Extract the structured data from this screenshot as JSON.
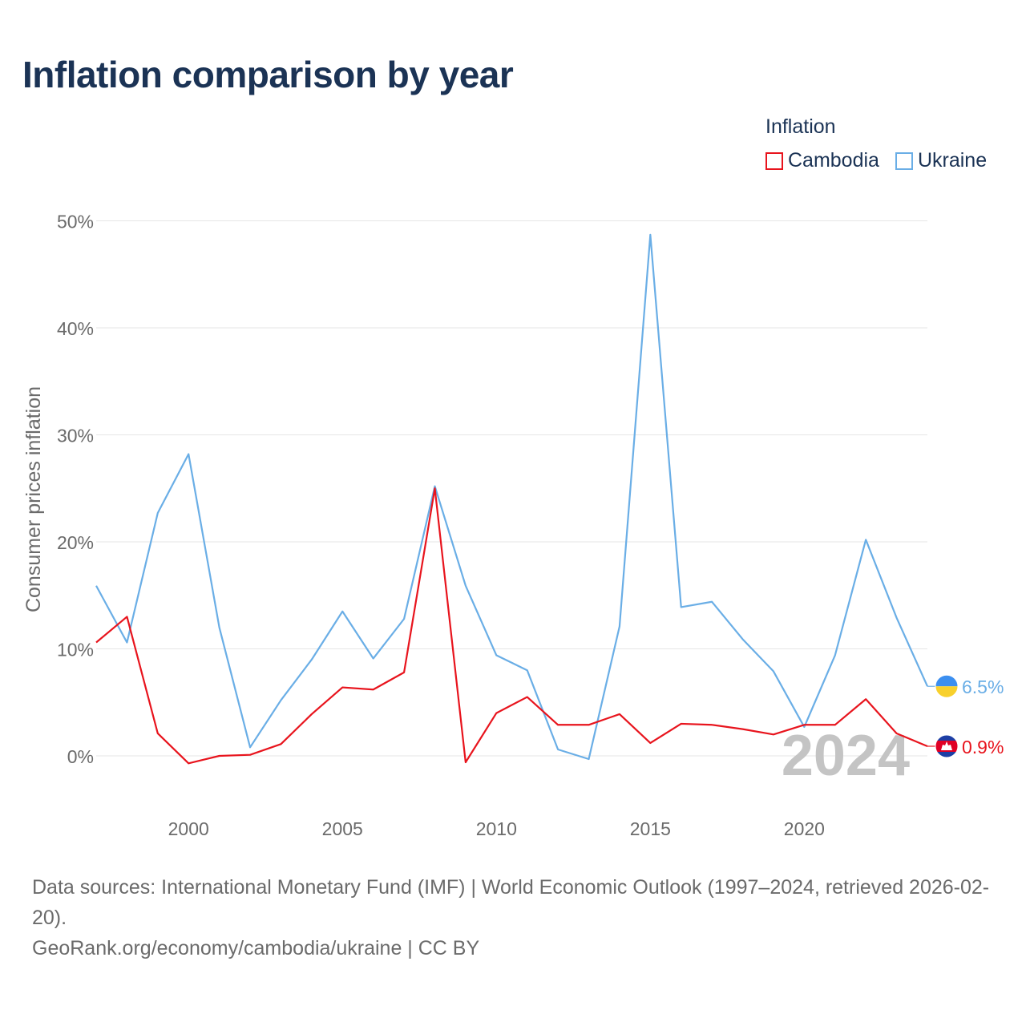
{
  "title": "Inflation comparison by year",
  "legend": {
    "title": "Inflation",
    "items": [
      {
        "label": "Cambodia",
        "color": "#e8141d"
      },
      {
        "label": "Ukraine",
        "color": "#6aaee6"
      }
    ]
  },
  "footer": {
    "source": "Data sources: International Monetary Fund (IMF) | World Economic Outlook (1997–2024, retrieved 2026-02-20).",
    "credit": "GeoRank.org/economy/cambodia/ukraine | CC BY"
  },
  "chart_data": {
    "type": "line",
    "title": "Inflation comparison by year",
    "xlabel": "",
    "ylabel": "Consumer prices inflation",
    "xlim": [
      1997,
      2024
    ],
    "ylim": [
      -5,
      50
    ],
    "y_ticks": [
      0,
      10,
      20,
      30,
      40,
      50
    ],
    "y_tick_labels": [
      "0%",
      "10%",
      "20%",
      "30%",
      "40%",
      "50%"
    ],
    "x_ticks": [
      2000,
      2005,
      2010,
      2015,
      2020
    ],
    "x_tick_labels": [
      "2000",
      "2005",
      "2010",
      "2015",
      "2020"
    ],
    "year_watermark": "2024",
    "x": [
      1997,
      1998,
      1999,
      2000,
      2001,
      2002,
      2003,
      2004,
      2005,
      2006,
      2007,
      2008,
      2009,
      2010,
      2011,
      2012,
      2013,
      2014,
      2015,
      2016,
      2017,
      2018,
      2019,
      2020,
      2021,
      2022,
      2023,
      2024
    ],
    "series": [
      {
        "name": "Cambodia",
        "color": "#e8141d",
        "end_label": "0.9%",
        "values": [
          10.6,
          13.0,
          2.1,
          -0.7,
          0.0,
          0.1,
          1.1,
          3.9,
          6.4,
          6.2,
          7.8,
          25.0,
          -0.6,
          4.0,
          5.5,
          2.9,
          2.9,
          3.9,
          1.2,
          3.0,
          2.9,
          2.5,
          2.0,
          2.9,
          2.9,
          5.3,
          2.1,
          0.9
        ]
      },
      {
        "name": "Ukraine",
        "color": "#6aaee6",
        "end_label": "6.5%",
        "values": [
          15.9,
          10.6,
          22.7,
          28.2,
          12.0,
          0.8,
          5.2,
          9.0,
          13.5,
          9.1,
          12.8,
          25.2,
          15.9,
          9.4,
          8.0,
          0.6,
          -0.3,
          12.1,
          48.7,
          13.9,
          14.4,
          10.9,
          7.9,
          2.7,
          9.4,
          20.2,
          12.9,
          6.5
        ]
      }
    ],
    "legend_position": "top-right",
    "grid": true
  }
}
